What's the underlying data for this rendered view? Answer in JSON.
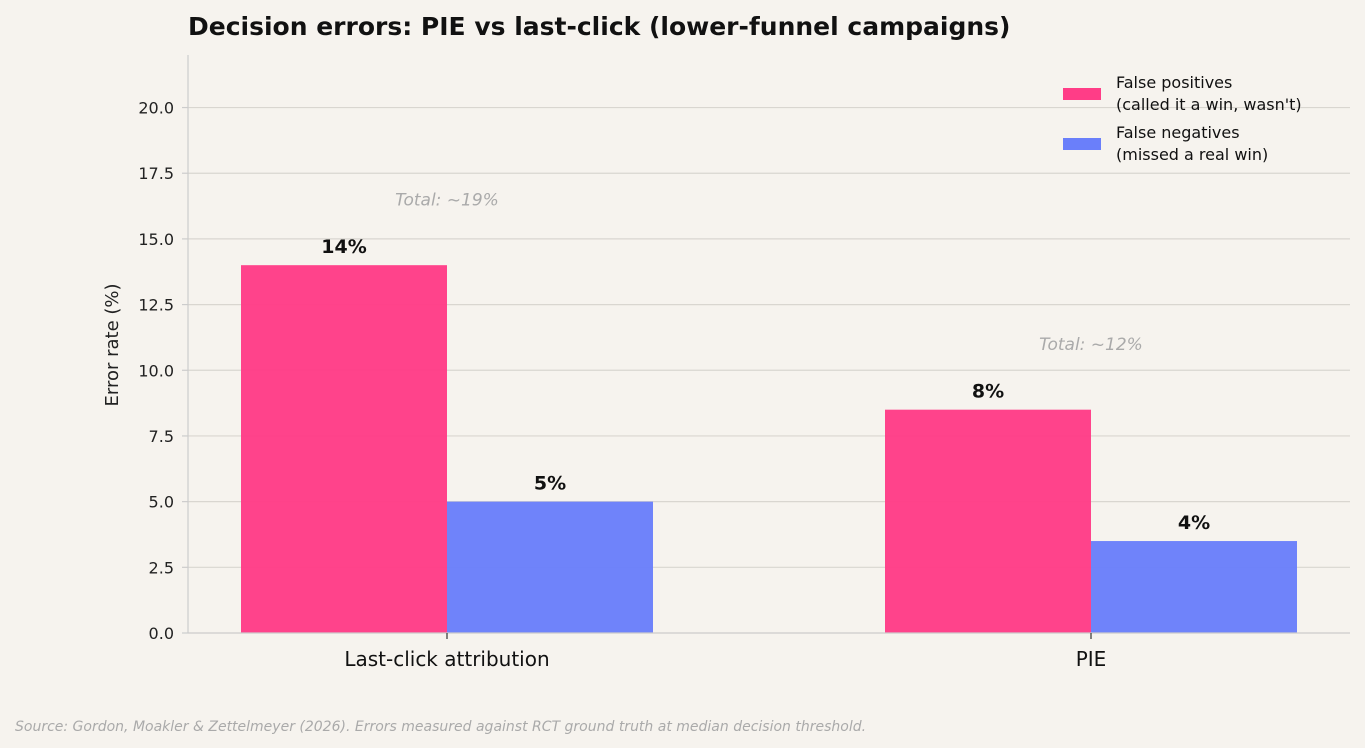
{
  "chart_data": {
    "type": "bar",
    "title": "Decision errors: PIE vs last-click (lower-funnel campaigns)",
    "xlabel": "",
    "ylabel": "Error rate (%)",
    "ylim": [
      0,
      22
    ],
    "yticks": [
      0.0,
      2.5,
      5.0,
      7.5,
      10.0,
      12.5,
      15.0,
      17.5,
      20.0
    ],
    "ytick_labels": [
      "0.0",
      "2.5",
      "5.0",
      "7.5",
      "10.0",
      "12.5",
      "15.0",
      "17.5",
      "20.0"
    ],
    "categories": [
      "Last-click attribution",
      "PIE"
    ],
    "series": [
      {
        "name": "False positives\n(called it a win, wasn't)",
        "color": "#ff3d87",
        "values": [
          14.0,
          8.5
        ],
        "labels": [
          "14%",
          "8%"
        ]
      },
      {
        "name": "False negatives\n(missed a real win)",
        "color": "#6a7ffa",
        "values": [
          5.0,
          3.5
        ],
        "labels": [
          "5%",
          "4%"
        ]
      }
    ],
    "annotations": [
      {
        "text": "Total: ~19%",
        "category": 0,
        "y": 16.5
      },
      {
        "text": "Total: ~12%",
        "category": 1,
        "y": 11.0
      }
    ],
    "grid": "y",
    "legend": "top-right",
    "source": "Source: Gordon, Moakler & Zettelmeyer (2026). Errors measured against RCT ground truth at median decision threshold."
  }
}
